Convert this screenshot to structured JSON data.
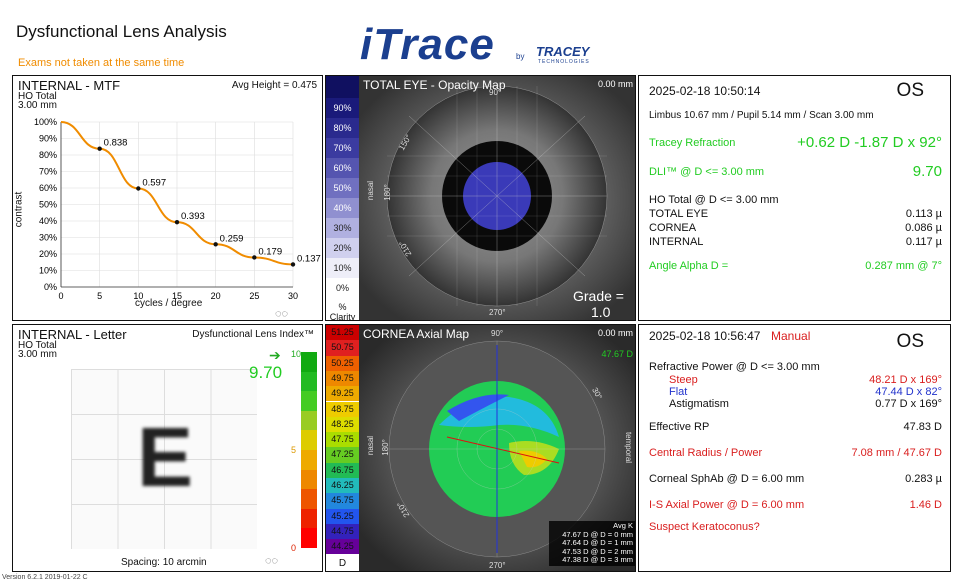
{
  "header": {
    "title": "Dysfunctional Lens Analysis",
    "warning": "Exams not taken at the same time",
    "logo_text": "iTrace",
    "logo_by": "by",
    "logo_brand": "TRACEY",
    "logo_brand_sub": "TECHNOLOGIES"
  },
  "mtf": {
    "title": "INTERNAL - MTF",
    "avg_height": "Avg Height = 0.475",
    "sub1": "HO Total",
    "sub2": "3.00 mm",
    "ylabel": "contrast",
    "xlabel": "cycles / degree"
  },
  "chart_data": {
    "type": "line",
    "title": "INTERNAL - MTF",
    "xlabel": "cycles / degree",
    "ylabel": "contrast",
    "x": [
      0,
      5,
      10,
      15,
      20,
      25,
      30
    ],
    "y_ticks": [
      "0%",
      "10%",
      "20%",
      "30%",
      "40%",
      "50%",
      "60%",
      "70%",
      "80%",
      "90%",
      "100%"
    ],
    "x_ticks": [
      "0",
      "5",
      "10",
      "15",
      "20",
      "25",
      "30"
    ],
    "xlim": [
      0,
      30
    ],
    "ylim": [
      0,
      1
    ],
    "series": [
      {
        "values": [
          1.0,
          0.838,
          0.597,
          0.393,
          0.259,
          0.179,
          0.137
        ]
      }
    ],
    "data_labels": [
      "",
      "0.838",
      "0.597",
      "0.393",
      "0.259",
      "0.179",
      "0.137"
    ],
    "color": "#f08c00"
  },
  "letter": {
    "title": "INTERNAL - Letter",
    "dli_label": "Dysfunctional Lens Index™",
    "sub1": "HO Total",
    "sub2": "3.00 mm",
    "letter": "E",
    "spacing": "Spacing:  10 arcmin",
    "dli_value": "9.70",
    "scale_top": "10",
    "scale_mid": "5",
    "scale_bottom": "0",
    "colors": [
      "#11aa11",
      "#22bb22",
      "#44cc22",
      "#99cc22",
      "#ddcc00",
      "#eeaa00",
      "#ee8800",
      "#ee5500",
      "#ee2200",
      "#ff0000"
    ]
  },
  "opacity": {
    "title": "TOTAL EYE - Opacity Map",
    "corner": "0.00 mm",
    "grade_label": "Grade =",
    "grade_value": "1.0",
    "angle_90": "90°",
    "angle_150": "150°",
    "angle_180": "180°",
    "angle_210": "210°",
    "angle_270": "270°",
    "nasal": "nasal",
    "scale": [
      "90%",
      "80%",
      "70%",
      "60%",
      "50%",
      "40%",
      "30%",
      "20%",
      "10%",
      "0%"
    ],
    "scale_foot1": "%",
    "scale_foot2": "Clarity",
    "scale_colors": [
      "#1a1a7a",
      "#2a2a8e",
      "#3b3ba0",
      "#5555b0",
      "#7070c0",
      "#9090d0",
      "#b0b0e0",
      "#d0d0ee",
      "#eeeef8",
      "#ffffff"
    ]
  },
  "axial": {
    "title": "CORNEA Axial Map",
    "corner": "0.00 mm",
    "angle_90": "90°",
    "angle_180": "180°",
    "angle_270": "270°",
    "angle_30": "30°",
    "angle_210": "210°",
    "nasal": "nasal",
    "temporal": "temporal",
    "top_right": "47.67 D",
    "avgk": "Avg K",
    "avgk_lines": [
      "47.67 D @ D = 0 mm",
      "47.64 D @ D = 1 mm",
      "47.53 D @ D = 2 mm",
      "47.38 D @ D = 3 mm"
    ],
    "scale": [
      "51.25",
      "50.75",
      "50.25",
      "49.75",
      "49.25",
      "48.75",
      "48.25",
      "47.75",
      "47.25",
      "46.75",
      "46.25",
      "45.75",
      "45.25",
      "44.75",
      "44.25"
    ],
    "scale_colors": [
      "#cc0000",
      "#e02020",
      "#ee6000",
      "#ee8800",
      "#eeaa00",
      "#eecc00",
      "#dddd00",
      "#aadd00",
      "#66cc22",
      "#22bb55",
      "#22bbbb",
      "#2288dd",
      "#2255ee",
      "#3322bb",
      "#660099"
    ],
    "scale_foot": "D"
  },
  "info1": {
    "date": "2025-02-18  10:50:14",
    "eye": "OS",
    "limbus": "Limbus 10.67 mm  /  Pupil 5.14 mm  /  Scan 3.00 mm",
    "refraction_label": "Tracey Refraction",
    "refraction_value": "+0.62 D -1.87 D x 92°",
    "dli_label": "DLI™ @ D <= 3.00 mm",
    "dli_value": "9.70",
    "ho_total": "HO Total @ D <= 3.00 mm",
    "rows": [
      {
        "label": "TOTAL EYE",
        "value": "0.113 µ"
      },
      {
        "label": "CORNEA",
        "value": "0.086 µ"
      },
      {
        "label": "INTERNAL",
        "value": "0.117 µ"
      }
    ],
    "angle_label": "Angle Alpha  D =",
    "angle_value": "0.287 mm @ 7°"
  },
  "info2": {
    "date": "2025-02-18  10:56:47",
    "manual": "Manual",
    "eye": "OS",
    "refractive_power": "Refractive Power @ D <= 3.00 mm",
    "steep_label": "Steep",
    "steep_value": "48.21 D x 169°",
    "flat_label": "Flat",
    "flat_value": "47.44 D x  82°",
    "astig_label": "Astigmatism",
    "astig_value": "0.77 D x 169°",
    "effective_label": "Effective RP",
    "effective_value": "47.83 D",
    "central_label": "Central Radius / Power",
    "central_value": "7.08 mm / 47.67 D",
    "sphab_label": "Corneal SphAb @ D = 6.00 mm",
    "sphab_value": "0.283 µ",
    "is_label": "I-S Axial Power @ D = 6.00 mm",
    "is_value": "1.46 D",
    "suspect": "Suspect Keratoconus?"
  },
  "footer": {
    "version": "Version 6.2.1 2019-01-22 C"
  }
}
